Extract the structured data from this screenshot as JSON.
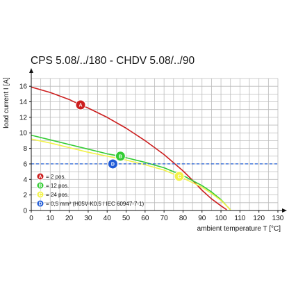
{
  "chart_data": {
    "type": "line",
    "title": "CPS 5.08/../180 - CHDV 5.08/../90",
    "xlabel": "ambient temperature T [°C]",
    "ylabel": "load current I [A]",
    "xlim": [
      0,
      130
    ],
    "ylim": [
      0,
      17
    ],
    "xticks": [
      "0",
      "10",
      "20",
      "30",
      "40",
      "50",
      "60",
      "70",
      "80",
      "90",
      "100",
      "110",
      "120",
      "130"
    ],
    "yticks": [
      "0",
      "2",
      "4",
      "6",
      "8",
      "10",
      "12",
      "14",
      "16"
    ],
    "grid": true,
    "legend_position": "bottom-left",
    "series": [
      {
        "marker": "A",
        "name": "= 2 pos.",
        "color": "#cc1e1e",
        "marker_at": [
          26,
          13.6
        ],
        "points": [
          [
            0,
            15.9
          ],
          [
            10,
            15.2
          ],
          [
            20,
            14.3
          ],
          [
            26,
            13.6
          ],
          [
            30,
            13.2
          ],
          [
            40,
            12.0
          ],
          [
            50,
            10.6
          ],
          [
            60,
            9.0
          ],
          [
            70,
            7.2
          ],
          [
            80,
            5.1
          ],
          [
            85,
            3.9
          ],
          [
            90,
            2.6
          ],
          [
            95,
            1.5
          ],
          [
            100,
            0.6
          ],
          [
            103,
            0.1
          ]
        ]
      },
      {
        "marker": "B",
        "name": "= 12 pos.",
        "color": "#33cc33",
        "marker_at": [
          47,
          7.0
        ],
        "points": [
          [
            0,
            9.7
          ],
          [
            10,
            9.1
          ],
          [
            20,
            8.5
          ],
          [
            30,
            7.9
          ],
          [
            40,
            7.3
          ],
          [
            47,
            7.0
          ],
          [
            50,
            6.8
          ],
          [
            60,
            6.2
          ],
          [
            70,
            5.5
          ],
          [
            80,
            4.5
          ],
          [
            90,
            3.2
          ],
          [
            95,
            2.4
          ],
          [
            100,
            1.4
          ],
          [
            103,
            0.6
          ],
          [
            105,
            0.1
          ]
        ]
      },
      {
        "marker": "C",
        "name": "= 24 pos.",
        "color": "#f2f24a",
        "marker_at": [
          78,
          4.4
        ],
        "points": [
          [
            0,
            9.2
          ],
          [
            10,
            8.7
          ],
          [
            20,
            8.1
          ],
          [
            30,
            7.5
          ],
          [
            40,
            7.0
          ],
          [
            50,
            6.5
          ],
          [
            60,
            5.9
          ],
          [
            70,
            5.2
          ],
          [
            78,
            4.4
          ],
          [
            85,
            3.6
          ],
          [
            90,
            3.0
          ],
          [
            95,
            2.2
          ],
          [
            100,
            1.3
          ],
          [
            103,
            0.6
          ],
          [
            105,
            0.1
          ]
        ]
      },
      {
        "marker": "D",
        "name": "= 0,5 mm² (H05V-K0.5 / IEC 60947-7-1)",
        "color": "#1f5bd6",
        "style": "dashed",
        "marker_at": [
          43,
          6.0
        ],
        "points": [
          [
            0,
            6.0
          ],
          [
            130,
            6.0
          ]
        ]
      }
    ]
  }
}
